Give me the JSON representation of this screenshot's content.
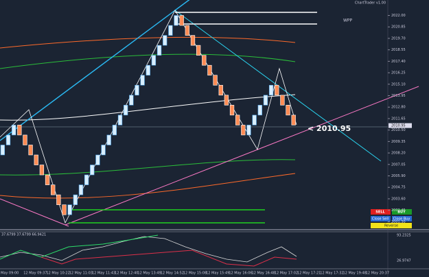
{
  "header": {
    "label": "ChartTrader v1.00",
    "indicator": "WPP"
  },
  "chart_data": {
    "type": "renko",
    "brick_size": 1,
    "start": 2008,
    "values": [
      2009,
      2010,
      2011,
      2010,
      2009,
      2008,
      2007,
      2006,
      2005,
      2004,
      2003,
      2002,
      2003,
      2004,
      2005,
      2006,
      2007,
      2008,
      2009,
      2010,
      2011,
      2012,
      2013,
      2014,
      2015,
      2016,
      2017,
      2018,
      2019,
      2020,
      2021,
      2022,
      2021,
      2020,
      2019,
      2018,
      2017,
      2016,
      2015,
      2014,
      2013,
      2012,
      2011,
      2010,
      2011,
      2012,
      2013,
      2014,
      2015,
      2014,
      2013,
      2012,
      2011
    ],
    "up_color": "#d8eeff",
    "down_color": "#ff8c55",
    "ylim": [
      2000.5,
      2023
    ],
    "yticks": [
      {
        "value": 2001.3,
        "label": "2001.30"
      },
      {
        "value": 2002.45,
        "label": "2002.45"
      },
      {
        "value": 2003.6,
        "label": "2003.60"
      },
      {
        "value": 2004.75,
        "label": "2004.75"
      },
      {
        "value": 2005.9,
        "label": "2005.90"
      },
      {
        "value": 2007.05,
        "label": "2007.05"
      },
      {
        "value": 2008.2,
        "label": "2008.20"
      },
      {
        "value": 2009.35,
        "label": "2009.35"
      },
      {
        "value": 2010.5,
        "label": "2010.50"
      },
      {
        "value": 2011.65,
        "label": "2011.65"
      },
      {
        "value": 2012.8,
        "label": "2012.80"
      },
      {
        "value": 2013.95,
        "label": "2013.95"
      },
      {
        "value": 2015.1,
        "label": "2015.10"
      },
      {
        "value": 2016.25,
        "label": "2016.25"
      },
      {
        "value": 2017.4,
        "label": "2017.40"
      },
      {
        "value": 2018.55,
        "label": "2018.55"
      },
      {
        "value": 2019.7,
        "label": "2019.70"
      },
      {
        "value": 2020.85,
        "label": "2020.85"
      },
      {
        "value": 2022,
        "label": "2022.00"
      }
    ],
    "last_price": {
      "value": 2010.95,
      "label": "< 2010.95",
      "axis_label": "2010.95"
    },
    "x_labels": [
      "May 09:00",
      "12 May 09:37",
      "12 May 10:22",
      "12 May 11:03",
      "12 May 11:43",
      "12 May 12:40",
      "12 May 13:49",
      "12 May 14:52",
      "12 May 15:08",
      "12 May 15:49",
      "12 May 16:06",
      "12 May 16:48",
      "12 May 17:02",
      "12 May 17:21",
      "12 May 17:32",
      "12 May 19:48",
      "12 May 20:37"
    ]
  },
  "oscillator": {
    "legend": "37.6799 37.6799 66.9421",
    "ticks": [
      "93.2325",
      "26.9747"
    ]
  },
  "buttons": [
    "SELL",
    "BUY",
    "Close Sell",
    "Close Buy",
    "Reverse"
  ]
}
